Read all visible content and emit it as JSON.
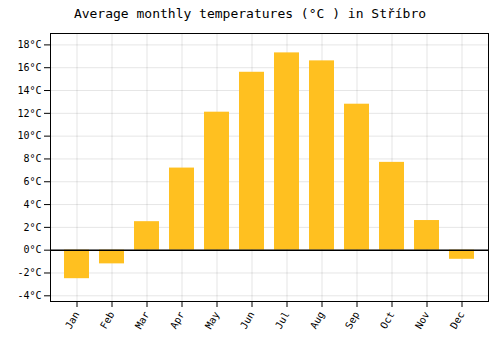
{
  "chart_data": {
    "type": "bar",
    "title": "Average monthly temperatures (°C ) in Stříbro",
    "categories": [
      "Jan",
      "Feb",
      "Mar",
      "Apr",
      "May",
      "Jun",
      "Jul",
      "Aug",
      "Sep",
      "Oct",
      "Nov",
      "Dec"
    ],
    "values": [
      -2.5,
      -1.2,
      2.5,
      7.2,
      12.1,
      15.6,
      17.3,
      16.6,
      12.8,
      7.7,
      2.6,
      -0.8
    ],
    "color": "#FFC020",
    "ylim": [
      -4.5,
      19
    ],
    "yticks": [
      {
        "value": -4,
        "label": "-4°C"
      },
      {
        "value": -2,
        "label": "-2°C"
      },
      {
        "value": 0,
        "label": "0°C"
      },
      {
        "value": 2,
        "label": "2°C"
      },
      {
        "value": 4,
        "label": "4°C"
      },
      {
        "value": 6,
        "label": "6°C"
      },
      {
        "value": 8,
        "label": "8°C"
      },
      {
        "value": 10,
        "label": "10°C"
      },
      {
        "value": 12,
        "label": "12°C"
      },
      {
        "value": 14,
        "label": "14°C"
      },
      {
        "value": 16,
        "label": "16°C"
      },
      {
        "value": 18,
        "label": "18°C"
      }
    ],
    "grid": true
  }
}
